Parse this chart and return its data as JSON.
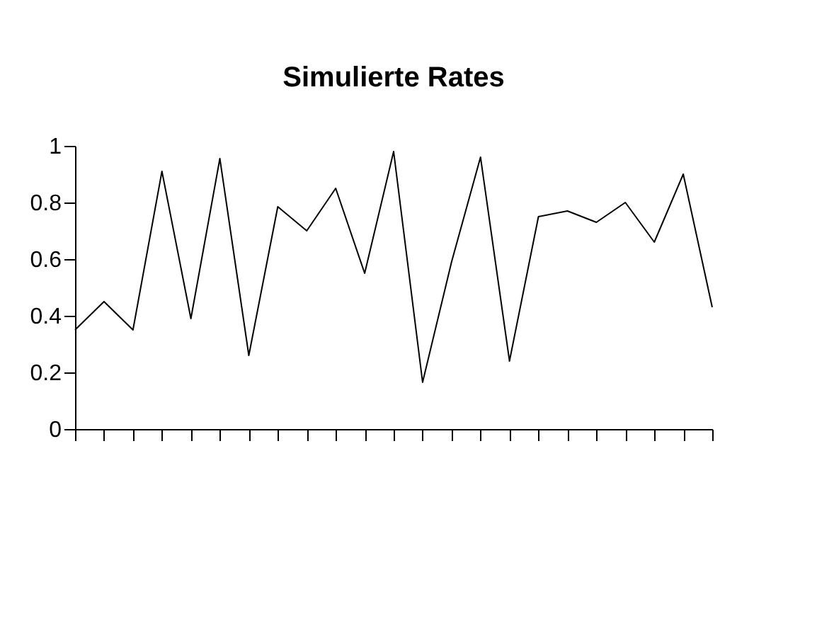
{
  "chart_data": {
    "type": "line",
    "title": "Simulierte Rates",
    "categories": [
      null,
      null,
      null,
      null,
      null,
      null,
      null,
      null,
      null,
      null,
      null,
      null,
      null,
      null,
      null,
      null,
      null,
      null,
      null,
      null,
      null,
      null,
      null
    ],
    "series": [
      {
        "color": "#000000",
        "values": [
          0.35,
          0.45,
          0.35,
          0.91,
          0.39,
          0.955,
          0.26,
          0.785,
          0.7,
          0.85,
          0.55,
          0.98,
          0.165,
          0.59,
          0.96,
          0.24,
          0.75,
          0.77,
          0.73,
          0.8,
          0.66,
          0.9,
          0.43
        ]
      }
    ],
    "ylim": [
      0,
      1
    ],
    "yticks": [
      0,
      0.2,
      0.4,
      0.6,
      0.8,
      1
    ],
    "grid": false,
    "tick_labels": "y",
    "marker": "none",
    "line_style": "solid"
  }
}
